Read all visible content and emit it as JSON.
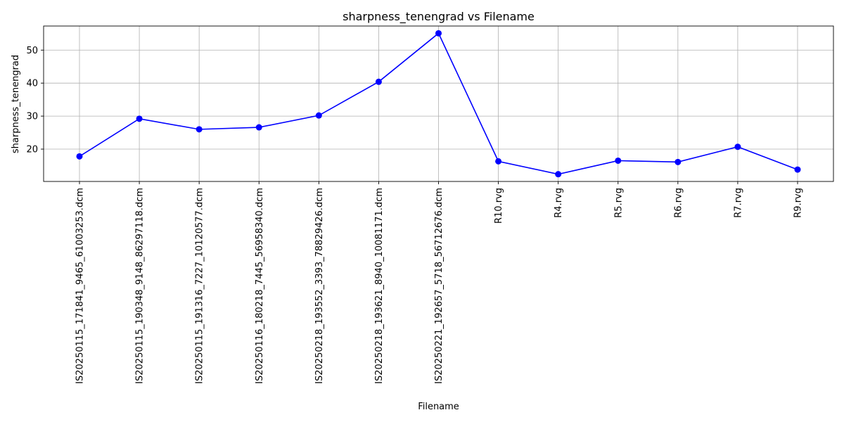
{
  "chart_data": {
    "type": "line",
    "title": "sharpness_tenengrad vs Filename",
    "xlabel": "Filename",
    "ylabel": "sharpness_tenengrad",
    "categories": [
      "IS20250115_171841_9465_61003253.dcm",
      "IS20250115_190348_9148_86297118.dcm",
      "IS20250115_191316_7227_10120577.dcm",
      "IS20250116_180218_7445_56958340.dcm",
      "IS20250218_193552_3393_78829426.dcm",
      "IS20250218_193621_8940_10081171.dcm",
      "IS20250221_192657_5718_56712676.dcm",
      "R10.rvg",
      "R4.rvg",
      "R5.rvg",
      "R6.rvg",
      "R7.rvg",
      "R9.rvg"
    ],
    "series": [
      {
        "values": [
          17.8,
          29.2,
          26.0,
          26.6,
          30.2,
          40.4,
          55.1,
          16.3,
          12.4,
          16.5,
          16.1,
          20.7,
          13.8
        ],
        "color": "#0000ff",
        "marker": "circle"
      }
    ],
    "ylim": [
      10.2,
      57.3
    ],
    "yticks": [
      20,
      30,
      40,
      50
    ],
    "grid": true,
    "axes_color": "#000000",
    "grid_color": "#b0b0b0"
  }
}
